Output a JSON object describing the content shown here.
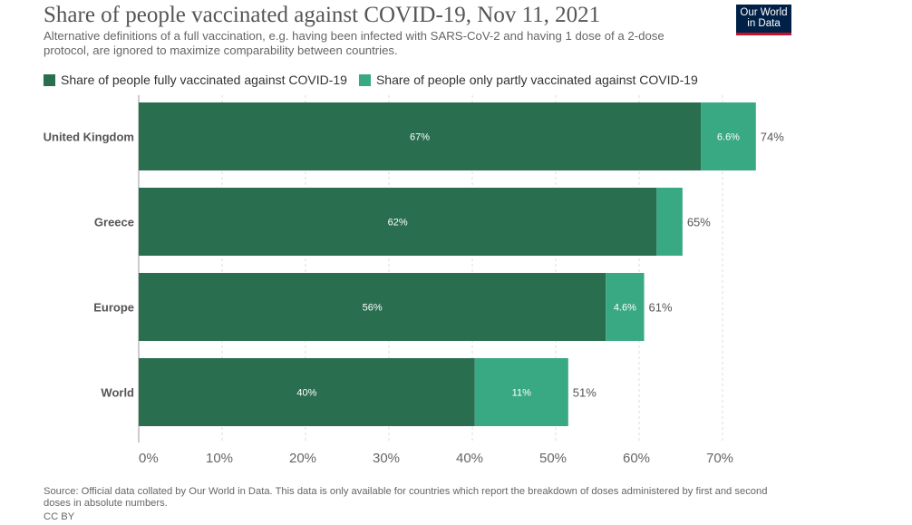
{
  "header": {
    "title": "Share of people vaccinated against COVID-19, Nov 11, 2021",
    "subtitle": "Alternative definitions of a full vaccination, e.g. having been infected with SARS-CoV-2 and having 1 dose of a 2-dose protocol, are ignored to maximize comparability between countries."
  },
  "logo": {
    "line1": "Our World",
    "line2": "in Data",
    "bg_color": "#002147",
    "accent_color": "#c8102e"
  },
  "footer": {
    "source": "Source: Official data collated by Our World in Data. This data is only available for countries which report the breakdown of doses administered by first and second doses in absolute numbers.",
    "license": "CC BY"
  },
  "chart_data": {
    "type": "bar",
    "orientation": "horizontal",
    "stacked": true,
    "categories": [
      "United Kingdom",
      "Greece",
      "Europe",
      "World"
    ],
    "series": [
      {
        "name": "Share of people fully vaccinated against COVID-19",
        "color": "#286e4f",
        "values": [
          67.4,
          62.1,
          56.0,
          40.3
        ],
        "labels": [
          "67%",
          "62%",
          "56%",
          "40%"
        ]
      },
      {
        "name": "Share of people only partly vaccinated against COVID-19",
        "color": "#38a982",
        "values": [
          6.6,
          3.1,
          4.6,
          11.2
        ],
        "labels": [
          "6.6%",
          "",
          "4.6%",
          "11%"
        ]
      }
    ],
    "totals": [
      "74%",
      "65%",
      "61%",
      "51%"
    ],
    "xlim": [
      0,
      75
    ],
    "xticks": [
      0,
      10,
      20,
      30,
      40,
      50,
      60,
      70
    ],
    "xtick_labels": [
      "0%",
      "10%",
      "20%",
      "30%",
      "40%",
      "50%",
      "60%",
      "70%"
    ],
    "grid": "vertical dashed",
    "legend_position": "top"
  }
}
